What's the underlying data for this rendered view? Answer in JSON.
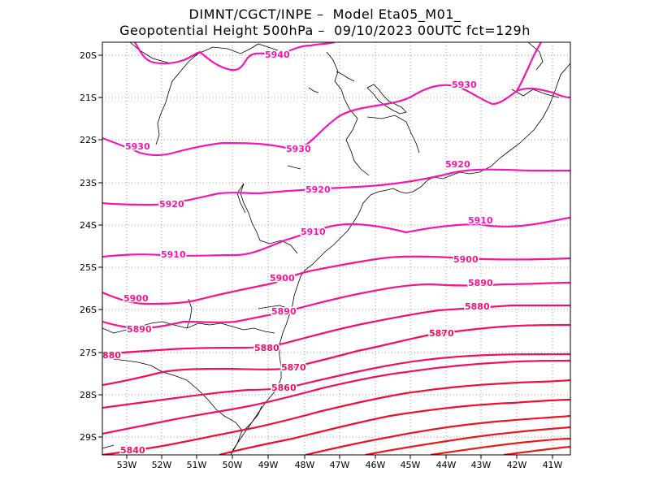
{
  "header": {
    "line1": "DIMNT/CGCT/INPE –  Model Eta05_M01_",
    "line2": "Geopotential Height 500hPa –  09/10/2023 00UTC fct=129h"
  },
  "axes": {
    "lon_labels": [
      "53W",
      "52W",
      "51W",
      "50W",
      "49W",
      "48W",
      "47W",
      "46W",
      "45W",
      "44W",
      "43W",
      "42W",
      "41W"
    ],
    "lat_labels": [
      "20S",
      "21S",
      "22S",
      "23S",
      "24S",
      "25S",
      "26S",
      "27S",
      "28S",
      "29S"
    ]
  },
  "colors": {
    "high": "#f218b0",
    "mid": "#f01060",
    "low": "#e81818",
    "coast": "#000000",
    "grid": "#999999"
  },
  "contour_labels": [
    {
      "text": "5940",
      "color": "#f218b0"
    },
    {
      "text": "5930",
      "color": "#f218b0"
    },
    {
      "text": "5930",
      "color": "#f218b0"
    },
    {
      "text": "5930",
      "color": "#f218b0"
    },
    {
      "text": "5920",
      "color": "#f218b0"
    },
    {
      "text": "5920",
      "color": "#f218b0"
    },
    {
      "text": "5920",
      "color": "#f218b0"
    },
    {
      "text": "5910",
      "color": "#f218b0"
    },
    {
      "text": "5910",
      "color": "#f218b0"
    },
    {
      "text": "5910",
      "color": "#f218b0"
    },
    {
      "text": "5900",
      "color": "#f21890"
    },
    {
      "text": "5900",
      "color": "#f21890"
    },
    {
      "text": "5900",
      "color": "#f21890"
    },
    {
      "text": "5890",
      "color": "#f21890"
    },
    {
      "text": "5890",
      "color": "#f21890"
    },
    {
      "text": "5890",
      "color": "#f21890"
    },
    {
      "text": "5880",
      "color": "#f01070"
    },
    {
      "text": "880",
      "color": "#f01070"
    },
    {
      "text": "5880",
      "color": "#f01070"
    },
    {
      "text": "5870",
      "color": "#f01060"
    },
    {
      "text": "5870",
      "color": "#f01060"
    },
    {
      "text": "5860",
      "color": "#f01060"
    },
    {
      "text": "5840",
      "color": "#f01060"
    }
  ]
}
